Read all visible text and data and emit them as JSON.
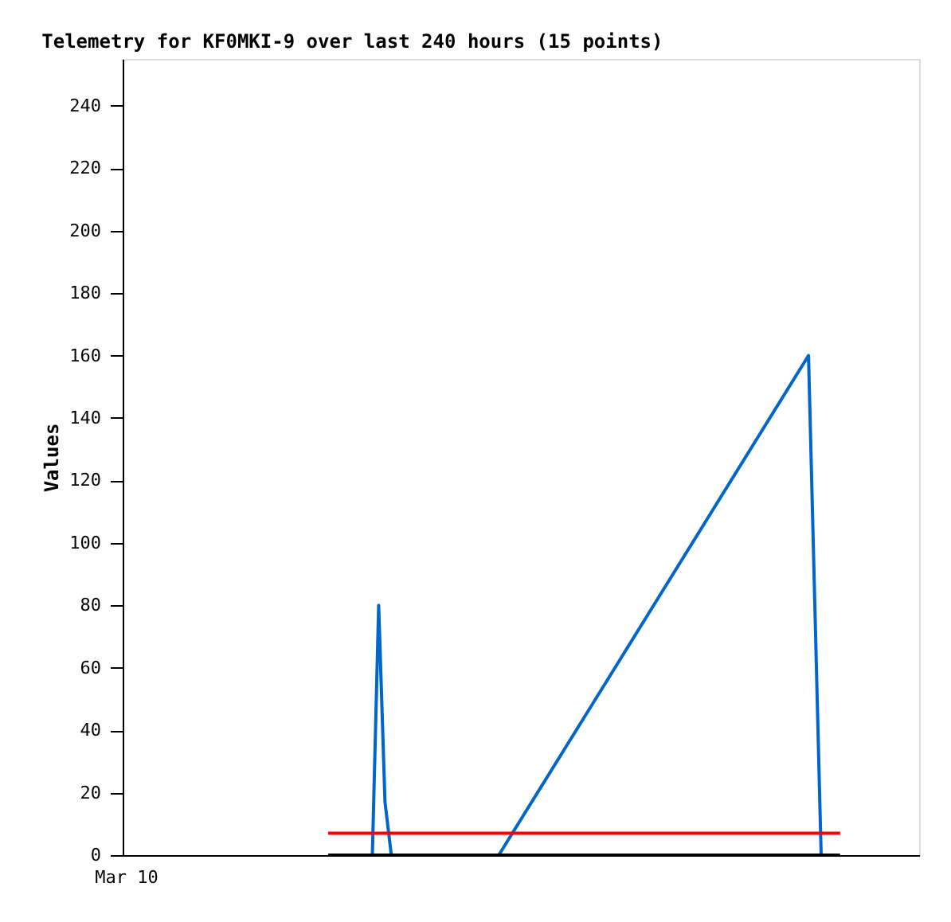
{
  "chart_data": {
    "type": "line",
    "title": "Telemetry for KF0MKI-9 over last 240 hours (15 points)",
    "ylabel": "Values",
    "categories": [
      "Mar 10",
      null,
      null,
      null,
      null,
      null,
      null,
      null,
      null,
      null,
      null,
      null,
      null,
      null,
      null,
      null,
      null,
      null,
      null,
      null,
      null,
      null,
      null,
      null,
      null,
      null,
      null,
      null,
      null,
      null,
      null,
      null,
      null,
      null,
      null,
      null,
      null,
      null,
      null,
      null,
      null,
      null,
      null,
      null,
      null,
      null,
      null,
      null,
      null,
      null,
      null,
      null,
      null,
      null,
      null,
      null,
      null,
      null,
      null,
      null,
      null,
      null,
      null,
      null,
      null,
      null,
      null,
      null,
      null,
      null,
      null,
      null,
      null,
      null,
      null,
      null,
      null,
      null,
      null,
      null,
      null,
      null,
      null,
      null,
      null,
      null,
      null,
      null,
      null,
      null,
      null,
      null,
      null,
      null,
      null,
      null,
      null,
      null,
      null,
      null,
      null,
      null,
      null,
      null,
      null,
      null,
      null,
      null,
      null,
      null,
      null,
      null,
      null,
      null,
      null,
      null,
      null,
      null,
      null,
      null,
      null,
      null,
      null,
      null,
      null,
      null
    ],
    "ylim": [
      0,
      255
    ],
    "yticks": [
      0,
      20,
      40,
      60,
      80,
      100,
      120,
      140,
      160,
      180,
      200,
      220,
      240
    ],
    "grid": false,
    "legend": false,
    "marker": "none",
    "line_style": "solid",
    "series": [
      {
        "color": "#0066cc",
        "values": [
          null,
          null,
          null,
          null,
          null,
          null,
          null,
          null,
          null,
          null,
          null,
          null,
          null,
          null,
          null,
          null,
          null,
          null,
          null,
          null,
          null,
          null,
          null,
          null,
          null,
          null,
          null,
          null,
          null,
          null,
          null,
          null,
          null,
          null,
          null,
          null,
          null,
          null,
          null,
          0,
          80,
          17,
          0,
          null,
          null,
          null,
          null,
          null,
          null,
          null,
          null,
          null,
          null,
          null,
          null,
          null,
          null,
          null,
          null,
          0,
          null,
          null,
          null,
          null,
          null,
          null,
          null,
          null,
          null,
          null,
          null,
          null,
          null,
          null,
          null,
          null,
          null,
          null,
          null,
          null,
          null,
          null,
          null,
          null,
          null,
          null,
          null,
          null,
          null,
          null,
          null,
          null,
          null,
          null,
          null,
          null,
          null,
          null,
          null,
          null,
          null,
          null,
          null,
          null,
          null,
          null,
          null,
          null,
          160,
          null,
          0,
          null,
          null,
          null,
          null,
          null,
          null,
          null,
          null,
          null,
          null,
          null,
          null,
          null,
          null,
          null
        ]
      },
      {
        "color": "#ff0000",
        "values": [
          null,
          null,
          null,
          null,
          null,
          null,
          null,
          null,
          null,
          null,
          null,
          null,
          null,
          null,
          null,
          null,
          null,
          null,
          null,
          null,
          null,
          null,
          null,
          null,
          null,
          null,
          null,
          null,
          null,
          null,
          null,
          null,
          7,
          null,
          null,
          null,
          null,
          null,
          null,
          null,
          null,
          null,
          null,
          null,
          null,
          null,
          null,
          null,
          null,
          null,
          null,
          null,
          null,
          null,
          null,
          null,
          null,
          null,
          null,
          null,
          null,
          null,
          null,
          null,
          null,
          null,
          null,
          null,
          null,
          null,
          null,
          null,
          null,
          null,
          null,
          null,
          null,
          null,
          null,
          null,
          null,
          null,
          null,
          null,
          null,
          null,
          null,
          null,
          null,
          null,
          null,
          null,
          null,
          null,
          null,
          null,
          null,
          null,
          null,
          null,
          null,
          null,
          null,
          null,
          null,
          null,
          null,
          null,
          null,
          null,
          null,
          null,
          null,
          7,
          null,
          null,
          null,
          null,
          null,
          null,
          null,
          null,
          null,
          null,
          null,
          null
        ]
      },
      {
        "color": "#000000",
        "values": [
          null,
          null,
          null,
          null,
          null,
          null,
          null,
          null,
          null,
          null,
          null,
          null,
          null,
          null,
          null,
          null,
          null,
          null,
          null,
          null,
          null,
          null,
          null,
          null,
          null,
          null,
          null,
          null,
          null,
          null,
          null,
          null,
          0,
          null,
          null,
          null,
          null,
          null,
          null,
          null,
          null,
          null,
          null,
          null,
          null,
          null,
          null,
          null,
          null,
          null,
          null,
          null,
          null,
          null,
          null,
          null,
          null,
          null,
          null,
          null,
          null,
          null,
          null,
          null,
          null,
          null,
          null,
          null,
          null,
          null,
          null,
          null,
          null,
          null,
          null,
          null,
          null,
          null,
          null,
          null,
          null,
          null,
          null,
          null,
          null,
          null,
          null,
          null,
          null,
          null,
          null,
          null,
          null,
          null,
          null,
          null,
          null,
          null,
          null,
          null,
          null,
          null,
          null,
          null,
          null,
          null,
          null,
          null,
          null,
          null,
          null,
          null,
          null,
          0,
          null,
          null,
          null,
          null,
          null,
          null,
          null,
          null,
          null,
          null,
          null,
          null
        ]
      }
    ]
  }
}
